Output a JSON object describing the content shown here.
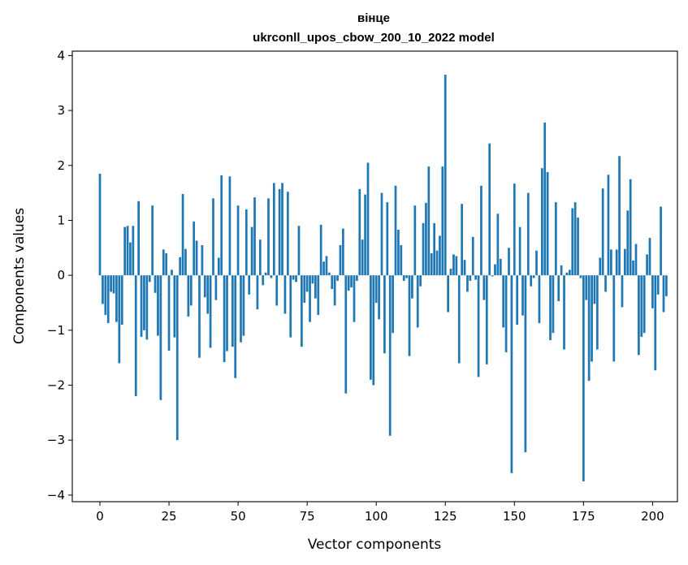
{
  "chart_data": {
    "type": "bar",
    "title_line1": "вінце",
    "title_line2": "ukrconll_upos_cbow_200_10_2022 model",
    "xlabel": "Vector components",
    "ylabel": "Components values",
    "xlim": [
      -10,
      209
    ],
    "ylim": [
      -4.12,
      4.08
    ],
    "xticks": [
      0,
      25,
      50,
      75,
      100,
      125,
      150,
      175,
      200
    ],
    "xtick_labels": [
      "0",
      "25",
      "50",
      "75",
      "100",
      "125",
      "150",
      "175",
      "200"
    ],
    "yticks": [
      -4,
      -3,
      -2,
      -1,
      0,
      1,
      2,
      3,
      4
    ],
    "ytick_labels": [
      "−4",
      "−3",
      "−2",
      "−1",
      "0",
      "1",
      "2",
      "3",
      "4"
    ],
    "bar_color": "#1f77b4",
    "grid": false,
    "values": [
      1.85,
      -0.52,
      -0.72,
      -0.87,
      -0.3,
      -0.33,
      -0.85,
      -1.6,
      -0.9,
      0.88,
      0.9,
      0.6,
      0.9,
      -2.2,
      1.35,
      -1.12,
      -1.0,
      -1.17,
      -0.12,
      1.27,
      -0.32,
      -1.1,
      -2.27,
      0.47,
      0.4,
      -1.37,
      0.1,
      -1.13,
      -3.0,
      0.33,
      1.48,
      0.48,
      -0.75,
      -0.55,
      0.98,
      0.63,
      -1.5,
      0.55,
      -0.4,
      -0.7,
      -1.32,
      1.4,
      -0.45,
      0.32,
      1.82,
      -1.58,
      -1.38,
      1.8,
      -1.3,
      -1.87,
      1.27,
      -1.22,
      -1.1,
      1.2,
      -0.35,
      0.88,
      1.42,
      -0.62,
      0.65,
      -0.18,
      0.05,
      1.4,
      -0.05,
      1.68,
      -0.55,
      1.57,
      1.68,
      -0.7,
      1.52,
      -1.13,
      -0.08,
      -0.12,
      0.9,
      -1.3,
      -0.5,
      -0.3,
      -0.85,
      -0.15,
      -0.42,
      -0.72,
      0.92,
      0.25,
      0.35,
      0.05,
      -0.25,
      -0.55,
      -0.1,
      0.55,
      0.85,
      -2.15,
      -0.28,
      -0.22,
      -0.85,
      -0.1,
      1.57,
      0.65,
      1.47,
      2.05,
      -1.9,
      -2.0,
      -0.5,
      -0.8,
      1.5,
      -1.42,
      1.33,
      -2.92,
      -1.05,
      1.63,
      0.83,
      0.55,
      -0.1,
      -0.05,
      -1.47,
      -0.42,
      1.27,
      -0.95,
      -0.2,
      0.95,
      1.32,
      1.98,
      0.4,
      0.95,
      0.45,
      0.72,
      1.98,
      3.65,
      -0.67,
      0.12,
      0.38,
      0.35,
      -1.6,
      1.3,
      0.28,
      -0.3,
      -0.1,
      0.7,
      -0.08,
      -1.85,
      1.63,
      -0.45,
      -1.62,
      2.4,
      -0.02,
      0.2,
      1.12,
      0.3,
      -0.95,
      -1.4,
      0.5,
      -3.6,
      1.67,
      -0.9,
      0.88,
      -0.73,
      -3.22,
      1.5,
      -0.2,
      -0.05,
      0.45,
      -0.87,
      1.95,
      2.78,
      1.88,
      -1.18,
      -1.05,
      1.33,
      -0.47,
      0.18,
      -1.35,
      0.05,
      0.1,
      1.22,
      1.33,
      1.05,
      -0.05,
      -3.75,
      -0.45,
      -1.92,
      -1.57,
      -0.52,
      -1.35,
      0.32,
      1.58,
      -0.3,
      1.83,
      0.47,
      -1.57,
      0.47,
      2.17,
      -0.58,
      0.48,
      1.18,
      1.75,
      0.27,
      0.57,
      -1.45,
      -1.12,
      -1.05,
      0.38,
      0.68,
      -0.6,
      -1.73,
      -0.35,
      1.25,
      -0.67,
      -0.38
    ]
  }
}
